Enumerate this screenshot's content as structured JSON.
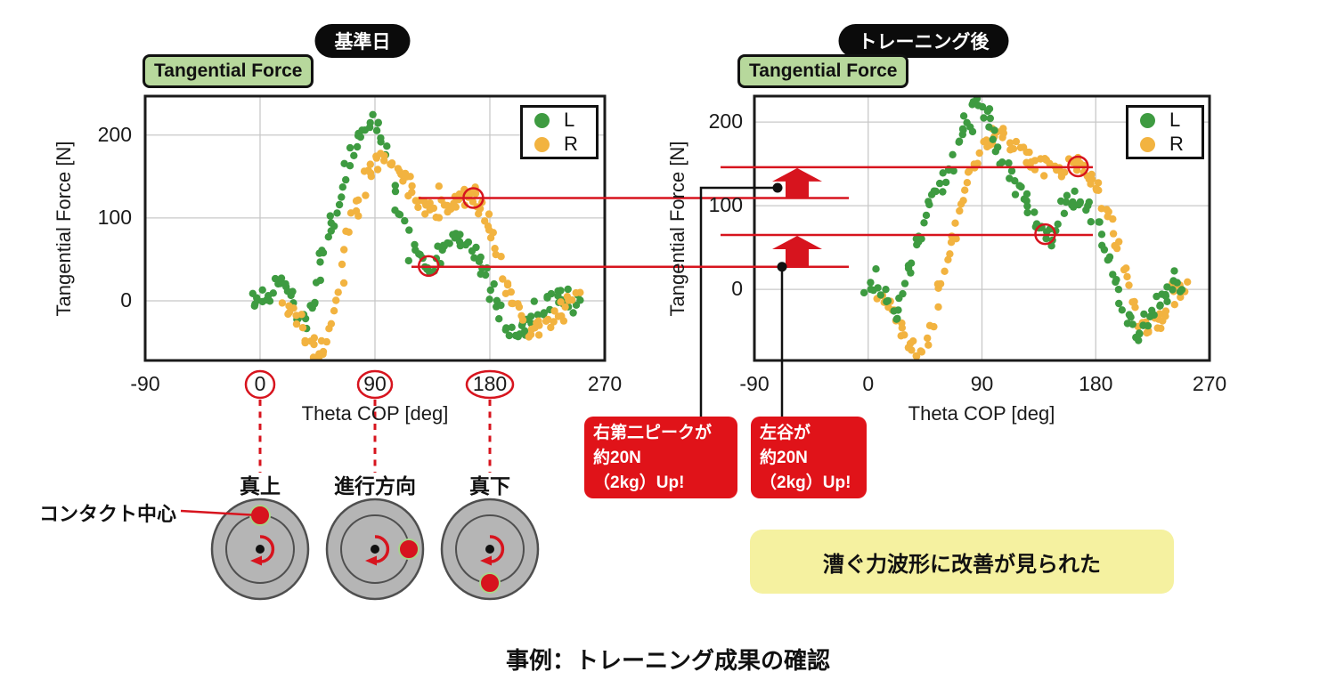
{
  "page": {
    "caption": "事例：トレーニング成果の確認"
  },
  "colors": {
    "green": "#3e9b41",
    "orange": "#f2b340",
    "red": "#d7141e",
    "callout_red": "#e01319",
    "pill_bg": "#0b0b0b",
    "badge_bg": "#b7d89c",
    "yellow_bg": "#f5f1a0",
    "wheel_gray": "#b5b5b5",
    "wheel_edge": "#4f4f4f",
    "grid": "#c8c8c8",
    "frame": "#1a1a1a"
  },
  "chart_data": [
    {
      "type": "scatter",
      "panel_tag": "基準日",
      "title": "Tangential Force",
      "xlabel": "Theta COP [deg]",
      "ylabel": "Tangential Force [N]",
      "xticks": [
        -90,
        0,
        90,
        180,
        270
      ],
      "yticks": [
        0,
        100,
        200
      ],
      "xlim": [
        -90,
        270
      ],
      "ylim": [
        -72,
        247
      ],
      "grid": true,
      "legend": {
        "position": "upper right",
        "entries": [
          "L",
          "R"
        ]
      },
      "circled_xticks": [
        0,
        90,
        180
      ],
      "highlight_circles": [
        {
          "theta": 167,
          "force": 124
        },
        {
          "theta": 132,
          "force": 42
        }
      ],
      "series": [
        {
          "name": "L",
          "color_key": "green",
          "anchors": [
            [
              -8,
              0
            ],
            [
              -4,
              1
            ],
            [
              0,
              2
            ],
            [
              4,
              4
            ],
            [
              8,
              10
            ],
            [
              12,
              22
            ],
            [
              16,
              33
            ],
            [
              20,
              30
            ],
            [
              24,
              8
            ],
            [
              28,
              -12
            ],
            [
              32,
              -24
            ],
            [
              36,
              -22
            ],
            [
              40,
              -8
            ],
            [
              44,
              14
            ],
            [
              48,
              40
            ],
            [
              52,
              68
            ],
            [
              56,
              92
            ],
            [
              60,
              114
            ],
            [
              64,
              138
            ],
            [
              68,
              160
            ],
            [
              72,
              180
            ],
            [
              76,
              196
            ],
            [
              80,
              207
            ],
            [
              84,
              213
            ],
            [
              88,
              214
            ],
            [
              92,
              207
            ],
            [
              96,
              193
            ],
            [
              100,
              170
            ],
            [
              104,
              144
            ],
            [
              108,
              117
            ],
            [
              112,
              94
            ],
            [
              116,
              77
            ],
            [
              120,
              62
            ],
            [
              124,
              52
            ],
            [
              128,
              46
            ],
            [
              132,
              42
            ],
            [
              136,
              48
            ],
            [
              140,
              58
            ],
            [
              144,
              67
            ],
            [
              148,
              74
            ],
            [
              152,
              79
            ],
            [
              156,
              80
            ],
            [
              160,
              76
            ],
            [
              164,
              68
            ],
            [
              168,
              58
            ],
            [
              172,
              46
            ],
            [
              176,
              33
            ],
            [
              180,
              18
            ],
            [
              184,
              2
            ],
            [
              188,
              -14
            ],
            [
              192,
              -27
            ],
            [
              196,
              -36
            ],
            [
              200,
              -42
            ],
            [
              204,
              -40
            ],
            [
              208,
              -34
            ],
            [
              212,
              -26
            ],
            [
              216,
              -18
            ],
            [
              220,
              -11
            ],
            [
              224,
              -7
            ],
            [
              228,
              -3
            ],
            [
              232,
              0
            ],
            [
              236,
              2
            ],
            [
              240,
              3
            ],
            [
              246,
              4
            ],
            [
              252,
              5
            ]
          ]
        },
        {
          "name": "R",
          "color_key": "orange",
          "anchors": [
            [
              18,
              -2
            ],
            [
              22,
              -10
            ],
            [
              26,
              -20
            ],
            [
              30,
              -32
            ],
            [
              34,
              -44
            ],
            [
              38,
              -54
            ],
            [
              42,
              -61
            ],
            [
              46,
              -62
            ],
            [
              50,
              -54
            ],
            [
              54,
              -36
            ],
            [
              58,
              -10
            ],
            [
              62,
              20
            ],
            [
              66,
              52
            ],
            [
              70,
              82
            ],
            [
              74,
              106
            ],
            [
              78,
              126
            ],
            [
              82,
              143
            ],
            [
              86,
              156
            ],
            [
              90,
              166
            ],
            [
              94,
              172
            ],
            [
              98,
              175
            ],
            [
              102,
              172
            ],
            [
              106,
              165
            ],
            [
              110,
              155
            ],
            [
              114,
              144
            ],
            [
              118,
              134
            ],
            [
              122,
              126
            ],
            [
              126,
              119
            ],
            [
              130,
              114
            ],
            [
              134,
              111
            ],
            [
              138,
              111
            ],
            [
              142,
              113
            ],
            [
              146,
              117
            ],
            [
              150,
              120
            ],
            [
              154,
              123
            ],
            [
              158,
              125
            ],
            [
              162,
              125
            ],
            [
              166,
              124
            ],
            [
              170,
              117
            ],
            [
              174,
              107
            ],
            [
              178,
              94
            ],
            [
              182,
              77
            ],
            [
              186,
              57
            ],
            [
              190,
              37
            ],
            [
              194,
              17
            ],
            [
              198,
              -2
            ],
            [
              202,
              -16
            ],
            [
              206,
              -26
            ],
            [
              210,
              -33
            ],
            [
              214,
              -36
            ],
            [
              218,
              -34
            ],
            [
              222,
              -29
            ],
            [
              226,
              -23
            ],
            [
              230,
              -17
            ],
            [
              234,
              -11
            ],
            [
              238,
              -6
            ],
            [
              242,
              -3
            ],
            [
              248,
              -1
            ],
            [
              254,
              1
            ]
          ]
        }
      ]
    },
    {
      "type": "scatter",
      "panel_tag": "トレーニング後",
      "title": "Tangential Force",
      "xlabel": "Theta COP [deg]",
      "ylabel": "Tangential Force [N]",
      "xticks": [
        -90,
        0,
        90,
        180,
        270
      ],
      "yticks": [
        0,
        100,
        200
      ],
      "xlim": [
        -90,
        270
      ],
      "ylim": [
        -85,
        231
      ],
      "grid": true,
      "legend": {
        "position": "upper right",
        "entries": [
          "L",
          "R"
        ]
      },
      "circled_xticks": [],
      "highlight_circles": [
        {
          "theta": 166,
          "force": 147
        },
        {
          "theta": 140,
          "force": 66
        }
      ],
      "series": [
        {
          "name": "L",
          "color_key": "green",
          "anchors": [
            [
              -2,
              0
            ],
            [
              2,
              1
            ],
            [
              6,
              2
            ],
            [
              10,
              0
            ],
            [
              14,
              -6
            ],
            [
              18,
              -22
            ],
            [
              21,
              -34
            ],
            [
              25,
              -14
            ],
            [
              29,
              8
            ],
            [
              33,
              32
            ],
            [
              37,
              52
            ],
            [
              41,
              70
            ],
            [
              45,
              86
            ],
            [
              49,
              99
            ],
            [
              53,
              110
            ],
            [
              57,
              121
            ],
            [
              61,
              133
            ],
            [
              65,
              148
            ],
            [
              69,
              164
            ],
            [
              73,
              180
            ],
            [
              77,
              196
            ],
            [
              81,
              209
            ],
            [
              85,
              218
            ],
            [
              89,
              219
            ],
            [
              93,
              210
            ],
            [
              97,
              196
            ],
            [
              101,
              179
            ],
            [
              105,
              161
            ],
            [
              109,
              148
            ],
            [
              113,
              140
            ],
            [
              117,
              130
            ],
            [
              121,
              117
            ],
            [
              125,
              104
            ],
            [
              129,
              91
            ],
            [
              133,
              79
            ],
            [
              137,
              70
            ],
            [
              141,
              66
            ],
            [
              145,
              70
            ],
            [
              149,
              80
            ],
            [
              153,
              92
            ],
            [
              157,
              101
            ],
            [
              161,
              107
            ],
            [
              165,
              110
            ],
            [
              169,
              106
            ],
            [
              173,
              98
            ],
            [
              177,
              87
            ],
            [
              181,
              75
            ],
            [
              185,
              59
            ],
            [
              189,
              41
            ],
            [
              193,
              21
            ],
            [
              197,
              1
            ],
            [
              201,
              -19
            ],
            [
              205,
              -36
            ],
            [
              209,
              -48
            ],
            [
              213,
              -52
            ],
            [
              217,
              -45
            ],
            [
              221,
              -35
            ],
            [
              225,
              -25
            ],
            [
              229,
              -16
            ],
            [
              233,
              -8
            ],
            [
              237,
              -2
            ],
            [
              241,
              2
            ],
            [
              246,
              4
            ],
            [
              252,
              5
            ]
          ]
        },
        {
          "name": "R",
          "color_key": "orange",
          "anchors": [
            [
              8,
              -2
            ],
            [
              12,
              -8
            ],
            [
              16,
              -16
            ],
            [
              20,
              -26
            ],
            [
              24,
              -39
            ],
            [
              28,
              -53
            ],
            [
              32,
              -65
            ],
            [
              36,
              -73
            ],
            [
              40,
              -75
            ],
            [
              44,
              -67
            ],
            [
              48,
              -51
            ],
            [
              52,
              -29
            ],
            [
              56,
              -4
            ],
            [
              60,
              22
            ],
            [
              64,
              48
            ],
            [
              68,
              73
            ],
            [
              72,
              96
            ],
            [
              76,
              116
            ],
            [
              80,
              133
            ],
            [
              84,
              148
            ],
            [
              88,
              161
            ],
            [
              92,
              171
            ],
            [
              96,
              179
            ],
            [
              100,
              184
            ],
            [
              104,
              185
            ],
            [
              108,
              182
            ],
            [
              112,
              177
            ],
            [
              116,
              171
            ],
            [
              120,
              165
            ],
            [
              124,
              160
            ],
            [
              128,
              156
            ],
            [
              132,
              152
            ],
            [
              136,
              148
            ],
            [
              140,
              145
            ],
            [
              144,
              143
            ],
            [
              148,
              142
            ],
            [
              152,
              143
            ],
            [
              156,
              145
            ],
            [
              160,
              146
            ],
            [
              164,
              147
            ],
            [
              168,
              146
            ],
            [
              172,
              141
            ],
            [
              176,
              134
            ],
            [
              180,
              124
            ],
            [
              184,
              111
            ],
            [
              188,
              94
            ],
            [
              192,
              75
            ],
            [
              196,
              55
            ],
            [
              200,
              34
            ],
            [
              204,
              14
            ],
            [
              208,
              -6
            ],
            [
              212,
              -23
            ],
            [
              216,
              -35
            ],
            [
              220,
              -42
            ],
            [
              224,
              -44
            ],
            [
              228,
              -39
            ],
            [
              232,
              -31
            ],
            [
              236,
              -21
            ],
            [
              240,
              -12
            ],
            [
              244,
              -5
            ],
            [
              248,
              -1
            ],
            [
              254,
              1
            ]
          ]
        }
      ]
    }
  ],
  "annotations": {
    "improvements": [
      {
        "from_N": 124,
        "to_N": 146,
        "callout_lines": [
          "右第二ピークが",
          "約20N",
          "（2kg）Up!"
        ]
      },
      {
        "from_N": 41,
        "to_N": 65,
        "callout_lines": [
          "左谷が",
          "約20N",
          "（2kg）Up!"
        ]
      }
    ],
    "summary": "漕ぐ力波形に改善が見られた",
    "contact": {
      "label": "コンタクト中心",
      "wheels": [
        {
          "tick": 0,
          "label": "真上",
          "dot_position": "top"
        },
        {
          "tick": 90,
          "label": "進行方向",
          "dot_position": "right"
        },
        {
          "tick": 180,
          "label": "真下",
          "dot_position": "bottom"
        }
      ]
    }
  }
}
